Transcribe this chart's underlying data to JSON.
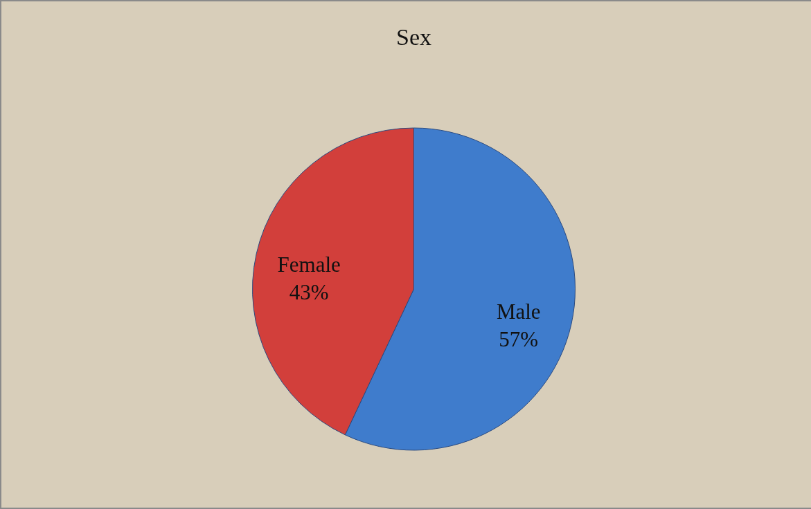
{
  "chart_data": {
    "type": "pie",
    "title": "Sex",
    "categories": [
      "Male",
      "Female"
    ],
    "values": [
      57,
      43
    ],
    "colors": [
      "#3f7ccc",
      "#d23f3b"
    ],
    "value_labels": [
      "57%",
      "43%"
    ],
    "legend": false
  }
}
